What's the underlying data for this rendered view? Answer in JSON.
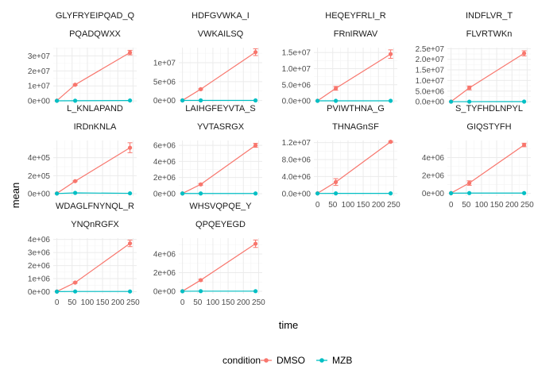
{
  "chart_data": {
    "type": "line",
    "xlabel": "time",
    "ylabel": "mean",
    "legend": {
      "title": "condition",
      "placement": "bottom"
    },
    "series_styles": [
      {
        "name": "DMSO",
        "color": "#F8766D"
      },
      {
        "name": "MZB",
        "color": "#00BFC4"
      }
    ],
    "x_ticks": [
      0,
      50,
      100,
      150,
      200,
      250
    ],
    "x_tick_labels": [
      "0",
      "50",
      "100",
      "150",
      "200",
      "250"
    ],
    "xlim": [
      -12,
      262
    ],
    "panels": [
      {
        "id": "p1",
        "title1": "GLYFRYEIPQAD_Q",
        "title2": "PQADQWXX",
        "ylim": [
          -1500000,
          35500000
        ],
        "y_ticks": [
          0,
          10000000,
          20000000,
          30000000
        ],
        "y_tick_labels": [
          "0e+00",
          "1e+07",
          "2e+07",
          "3e+07"
        ],
        "series": [
          {
            "name": "DMSO",
            "x": [
              0,
              60,
              240
            ],
            "y": [
              200000,
              10800000,
              32200000
            ],
            "err": [
              0,
              400000,
              1500000
            ]
          },
          {
            "name": "MZB",
            "x": [
              0,
              60,
              240
            ],
            "y": [
              100000,
              150000,
              300000
            ],
            "err": [
              0,
              0,
              0
            ]
          }
        ]
      },
      {
        "id": "p2",
        "title1": "HDFGVWKA_I",
        "title2": "VWKAILSQ",
        "ylim": [
          -700000,
          14000000
        ],
        "y_ticks": [
          0,
          5000000,
          10000000
        ],
        "y_tick_labels": [
          "0e+00",
          "5e+06",
          "1e+07"
        ],
        "series": [
          {
            "name": "DMSO",
            "x": [
              0,
              60,
              240
            ],
            "y": [
              50000,
              3000000,
              12800000
            ],
            "err": [
              0,
              150000,
              900000
            ]
          },
          {
            "name": "MZB",
            "x": [
              0,
              60,
              240
            ],
            "y": [
              30000,
              30000,
              40000
            ],
            "err": [
              0,
              0,
              0
            ]
          }
        ]
      },
      {
        "id": "p3",
        "title1": "HEQEYFRLI_R",
        "title2": "FRnIRWAV",
        "ylim": [
          -700000,
          16500000
        ],
        "y_ticks": [
          0,
          5000000,
          10000000,
          15000000
        ],
        "y_tick_labels": [
          "0.0e+00",
          "5.0e+06",
          "1.0e+07",
          "1.5e+07"
        ],
        "series": [
          {
            "name": "DMSO",
            "x": [
              0,
              60,
              240
            ],
            "y": [
              50000,
              3900000,
              14500000
            ],
            "err": [
              0,
              600000,
              1300000
            ]
          },
          {
            "name": "MZB",
            "x": [
              0,
              60,
              240
            ],
            "y": [
              30000,
              30000,
              40000
            ],
            "err": [
              0,
              0,
              0
            ]
          }
        ]
      },
      {
        "id": "p4",
        "title1": "INDFLVR_T",
        "title2": "FLVRTWKn",
        "ylim": [
          -700000,
          25500000
        ],
        "y_ticks": [
          0,
          5000000,
          10000000,
          15000000,
          20000000,
          25000000
        ],
        "y_tick_labels": [
          "0.0e+00",
          "5.0e+06",
          "1.0e+07",
          "1.5e+07",
          "2.0e+07",
          "2.5e+07"
        ],
        "series": [
          {
            "name": "DMSO",
            "x": [
              0,
              60,
              240
            ],
            "y": [
              50000,
              6500000,
              22800000
            ],
            "err": [
              0,
              900000,
              1200000
            ]
          },
          {
            "name": "MZB",
            "x": [
              0,
              60,
              240
            ],
            "y": [
              30000,
              30000,
              40000
            ],
            "err": [
              0,
              0,
              0
            ]
          }
        ]
      },
      {
        "id": "p5",
        "title1": "L_KNLAPAND",
        "title2": "IRDnKNLA",
        "ylim": [
          -25000,
          590000
        ],
        "y_ticks": [
          0,
          200000,
          400000
        ],
        "y_tick_labels": [
          "0e+00",
          "2e+05",
          "4e+05"
        ],
        "series": [
          {
            "name": "DMSO",
            "x": [
              0,
              60,
              240
            ],
            "y": [
              5000,
              140000,
              510000
            ],
            "err": [
              0,
              5000,
              55000
            ]
          },
          {
            "name": "MZB",
            "x": [
              0,
              60,
              240
            ],
            "y": [
              3000,
              10000,
              5000
            ],
            "err": [
              0,
              0,
              0
            ]
          }
        ]
      },
      {
        "id": "p6",
        "title1": "LAIHGFEYVTA_S",
        "title2": "YVTASRGX",
        "ylim": [
          -300000,
          6600000
        ],
        "y_ticks": [
          0,
          2000000,
          4000000,
          6000000
        ],
        "y_tick_labels": [
          "0e+00",
          "2e+06",
          "4e+06",
          "6e+06"
        ],
        "series": [
          {
            "name": "DMSO",
            "x": [
              0,
              60,
              240
            ],
            "y": [
              30000,
              1150000,
              6000000
            ],
            "err": [
              0,
              100000,
              250000
            ]
          },
          {
            "name": "MZB",
            "x": [
              0,
              60,
              240
            ],
            "y": [
              20000,
              20000,
              20000
            ],
            "err": [
              0,
              0,
              0
            ]
          }
        ]
      },
      {
        "id": "p7",
        "title1": "PVIWTHNA_G",
        "title2": "THNAGnSF",
        "ylim": [
          -600000,
          12500000
        ],
        "y_ticks": [
          0,
          4000000,
          8000000,
          12000000
        ],
        "y_tick_labels": [
          "0.0e+00",
          "4.0e+06",
          "8.0e+06",
          "1.2e+07"
        ],
        "series": [
          {
            "name": "DMSO",
            "x": [
              0,
              60,
              240
            ],
            "y": [
              50000,
              2700000,
              12200000
            ],
            "err": [
              0,
              800000,
              150000
            ]
          },
          {
            "name": "MZB",
            "x": [
              0,
              60,
              240
            ],
            "y": [
              20000,
              30000,
              30000
            ],
            "err": [
              0,
              0,
              0
            ]
          }
        ]
      },
      {
        "id": "p8",
        "title1": "S_TYFHDLNPYL",
        "title2": "GIQSTYFH",
        "ylim": [
          -300000,
          5900000
        ],
        "y_ticks": [
          0,
          2000000,
          4000000
        ],
        "y_tick_labels": [
          "0e+00",
          "2e+06",
          "4e+06"
        ],
        "series": [
          {
            "name": "DMSO",
            "x": [
              0,
              60,
              240
            ],
            "y": [
              30000,
              1150000,
              5400000
            ],
            "err": [
              0,
              250000,
              200000
            ]
          },
          {
            "name": "MZB",
            "x": [
              0,
              60,
              240
            ],
            "y": [
              20000,
              30000,
              30000
            ],
            "err": [
              0,
              0,
              0
            ]
          }
        ]
      },
      {
        "id": "p9",
        "title1": "WDAGLFNYNQL_R",
        "title2": "YNQnRGFX",
        "ylim": [
          -150000,
          4100000
        ],
        "y_ticks": [
          0,
          1000000,
          2000000,
          3000000,
          4000000
        ],
        "y_tick_labels": [
          "0e+00",
          "1e+06",
          "2e+06",
          "3e+06",
          "4e+06"
        ],
        "series": [
          {
            "name": "DMSO",
            "x": [
              0,
              60,
              240
            ],
            "y": [
              20000,
              700000,
              3700000
            ],
            "err": [
              0,
              50000,
              250000
            ]
          },
          {
            "name": "MZB",
            "x": [
              0,
              60,
              240
            ],
            "y": [
              10000,
              20000,
              20000
            ],
            "err": [
              0,
              0,
              0
            ]
          }
        ]
      },
      {
        "id": "p10",
        "title1": "WHSVQPQE_Y",
        "title2": "QPQEYEGD",
        "ylim": [
          -250000,
          5700000
        ],
        "y_ticks": [
          0,
          2000000,
          4000000
        ],
        "y_tick_labels": [
          "0e+00",
          "2e+06",
          "4e+06"
        ],
        "series": [
          {
            "name": "DMSO",
            "x": [
              0,
              60,
              240
            ],
            "y": [
              20000,
              1200000,
              5100000
            ],
            "err": [
              0,
              100000,
              400000
            ]
          },
          {
            "name": "MZB",
            "x": [
              0,
              60,
              240
            ],
            "y": [
              10000,
              20000,
              20000
            ],
            "err": [
              0,
              0,
              0
            ]
          }
        ]
      }
    ]
  }
}
